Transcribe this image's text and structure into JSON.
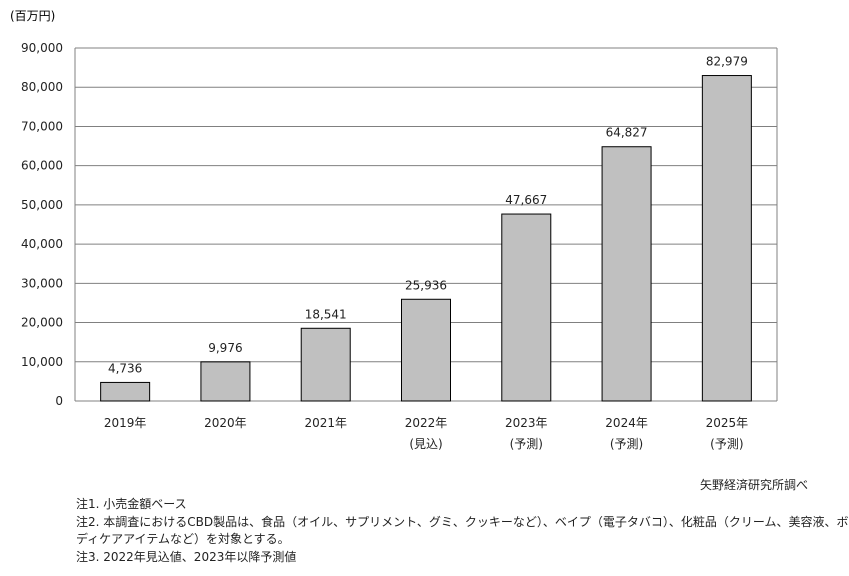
{
  "chart_data": {
    "type": "bar",
    "unit_label": "(百万円)",
    "categories": [
      "2019年",
      "2020年",
      "2021年",
      "2022年",
      "2023年",
      "2024年",
      "2025年"
    ],
    "category_sublabels": [
      "",
      "",
      "",
      "(見込)",
      "(予測)",
      "(予測)",
      "(予測)"
    ],
    "values": [
      4736,
      9976,
      18541,
      25936,
      47667,
      64827,
      82979
    ],
    "value_labels": [
      "4,736",
      "9,976",
      "18,541",
      "25,936",
      "47,667",
      "64,827",
      "82,979"
    ],
    "ylim": [
      0,
      90000
    ],
    "yticks": [
      0,
      10000,
      20000,
      30000,
      40000,
      50000,
      60000,
      70000,
      80000,
      90000
    ],
    "ytick_labels": [
      "0",
      "10,000",
      "20,000",
      "30,000",
      "40,000",
      "50,000",
      "60,000",
      "70,000",
      "80,000",
      "90,000"
    ],
    "grid": true,
    "colors": {
      "bar": "#c0c0c0",
      "bar_edge": "#000000",
      "grid": "#808080",
      "frame": "#808080"
    }
  },
  "source": "矢野経済研究所調べ",
  "notes": [
    "注1. 小売金額ベース",
    "注2. 本調査におけるCBD製品は、食品（オイル、サプリメント、グミ、クッキーなど）、ベイプ（電子タバコ）、化粧品（クリーム、美容液、ボ",
    "ディケアアイテムなど）を対象とする。",
    "注3. 2022年見込値、2023年以降予測値"
  ]
}
